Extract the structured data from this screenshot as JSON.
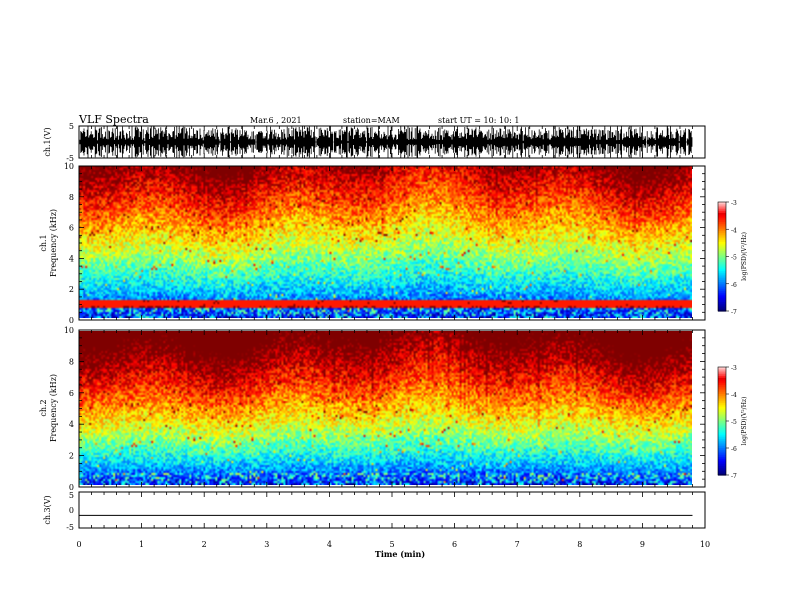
{
  "header": {
    "title": "VLF Spectra",
    "date": "Mar.6 , 2021",
    "station": "station=MAM",
    "start": "start UT = 10: 10: 1"
  },
  "chart_data": [
    {
      "type": "line",
      "panel": "ch1-waveform",
      "ylabel": "ch.1(V)",
      "ylim": [
        -5,
        5
      ],
      "yticks": [
        "5",
        "-5"
      ],
      "xlim": [
        0,
        10
      ],
      "description_values": "dense burst waveform spanning most of the range"
    },
    {
      "type": "heatmap",
      "panel": "ch1-spectrogram",
      "ylabel": "ch.1",
      "ylabel2": "Frequency (kHz)",
      "yticks": [
        "0",
        "2",
        "4",
        "6",
        "8",
        "10"
      ],
      "ylim": [
        0,
        10
      ],
      "xlim": [
        0,
        10
      ],
      "colorbar": {
        "label": "log(PSD)(V²/Hz)",
        "ticks": [
          "-3",
          "-4",
          "-5",
          "-6",
          "-7"
        ],
        "range": [
          -7,
          -3
        ]
      }
    },
    {
      "type": "heatmap",
      "panel": "ch2-spectrogram",
      "ylabel": "ch.2",
      "ylabel2": "Frequency (kHz)",
      "yticks": [
        "0",
        "2",
        "4",
        "6",
        "8",
        "10"
      ],
      "ylim": [
        0,
        10
      ],
      "xlim": [
        0,
        10
      ],
      "colorbar": {
        "label": "log(PSD)(V²/Hz)",
        "ticks": [
          "-3",
          "-4",
          "-5",
          "-6",
          "-7"
        ],
        "range": [
          -7,
          -3
        ]
      }
    },
    {
      "type": "line",
      "panel": "ch3-waveform",
      "ylabel": "ch.3(V)",
      "ylim": [
        -5,
        5
      ],
      "yticks": [
        "5",
        "0",
        "-5"
      ],
      "xlim": [
        0,
        10
      ],
      "x": [
        0,
        9.8
      ],
      "y": [
        -1.5,
        -1.5
      ]
    }
  ],
  "xaxis": {
    "label": "Time (min)",
    "ticks": [
      "0",
      "1",
      "2",
      "3",
      "4",
      "5",
      "6",
      "7",
      "8",
      "9",
      "10"
    ]
  }
}
